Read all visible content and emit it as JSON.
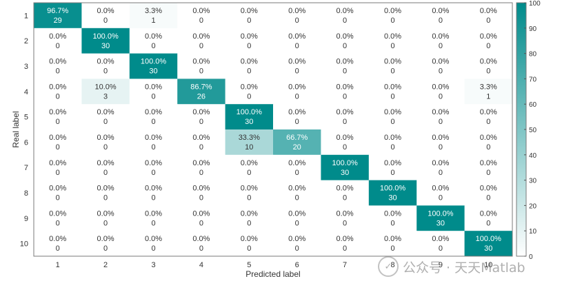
{
  "chart_data": {
    "type": "heatmap",
    "title": "",
    "xlabel": "Predicted label",
    "ylabel": "Real label",
    "x_categories": [
      "1",
      "2",
      "3",
      "4",
      "5",
      "6",
      "7",
      "8",
      "9",
      "10"
    ],
    "y_categories": [
      "1",
      "2",
      "3",
      "4",
      "5",
      "6",
      "7",
      "8",
      "9",
      "10"
    ],
    "percentages": [
      [
        "96.7%",
        "0.0%",
        "3.3%",
        "0.0%",
        "0.0%",
        "0.0%",
        "0.0%",
        "0.0%",
        "0.0%",
        "0.0%"
      ],
      [
        "0.0%",
        "100.0%",
        "0.0%",
        "0.0%",
        "0.0%",
        "0.0%",
        "0.0%",
        "0.0%",
        "0.0%",
        "0.0%"
      ],
      [
        "0.0%",
        "0.0%",
        "100.0%",
        "0.0%",
        "0.0%",
        "0.0%",
        "0.0%",
        "0.0%",
        "0.0%",
        "0.0%"
      ],
      [
        "0.0%",
        "10.0%",
        "0.0%",
        "86.7%",
        "0.0%",
        "0.0%",
        "0.0%",
        "0.0%",
        "0.0%",
        "3.3%"
      ],
      [
        "0.0%",
        "0.0%",
        "0.0%",
        "0.0%",
        "100.0%",
        "0.0%",
        "0.0%",
        "0.0%",
        "0.0%",
        "0.0%"
      ],
      [
        "0.0%",
        "0.0%",
        "0.0%",
        "0.0%",
        "33.3%",
        "66.7%",
        "0.0%",
        "0.0%",
        "0.0%",
        "0.0%"
      ],
      [
        "0.0%",
        "0.0%",
        "0.0%",
        "0.0%",
        "0.0%",
        "0.0%",
        "100.0%",
        "0.0%",
        "0.0%",
        "0.0%"
      ],
      [
        "0.0%",
        "0.0%",
        "0.0%",
        "0.0%",
        "0.0%",
        "0.0%",
        "0.0%",
        "100.0%",
        "0.0%",
        "0.0%"
      ],
      [
        "0.0%",
        "0.0%",
        "0.0%",
        "0.0%",
        "0.0%",
        "0.0%",
        "0.0%",
        "0.0%",
        "100.0%",
        "0.0%"
      ],
      [
        "0.0%",
        "0.0%",
        "0.0%",
        "0.0%",
        "0.0%",
        "0.0%",
        "0.0%",
        "0.0%",
        "0.0%",
        "100.0%"
      ]
    ],
    "counts": [
      [
        29,
        0,
        1,
        0,
        0,
        0,
        0,
        0,
        0,
        0
      ],
      [
        0,
        30,
        0,
        0,
        0,
        0,
        0,
        0,
        0,
        0
      ],
      [
        0,
        0,
        30,
        0,
        0,
        0,
        0,
        0,
        0,
        0
      ],
      [
        0,
        3,
        0,
        26,
        0,
        0,
        0,
        0,
        0,
        1
      ],
      [
        0,
        0,
        0,
        0,
        30,
        0,
        0,
        0,
        0,
        0
      ],
      [
        0,
        0,
        0,
        0,
        10,
        20,
        0,
        0,
        0,
        0
      ],
      [
        0,
        0,
        0,
        0,
        0,
        0,
        30,
        0,
        0,
        0
      ],
      [
        0,
        0,
        0,
        0,
        0,
        0,
        0,
        30,
        0,
        0
      ],
      [
        0,
        0,
        0,
        0,
        0,
        0,
        0,
        0,
        30,
        0
      ],
      [
        0,
        0,
        0,
        0,
        0,
        0,
        0,
        0,
        0,
        30
      ]
    ],
    "colorbar": {
      "range": [
        0,
        100
      ],
      "ticks": [
        "0",
        "10",
        "20",
        "30",
        "40",
        "50",
        "60",
        "70",
        "80",
        "90",
        "100"
      ],
      "color_low": "#ffffff",
      "color_high": "#008b8b"
    },
    "grid": false,
    "legend": "none"
  },
  "watermark": {
    "logo": "wechat-icon",
    "text": "公众号 · 天天Matlab"
  }
}
